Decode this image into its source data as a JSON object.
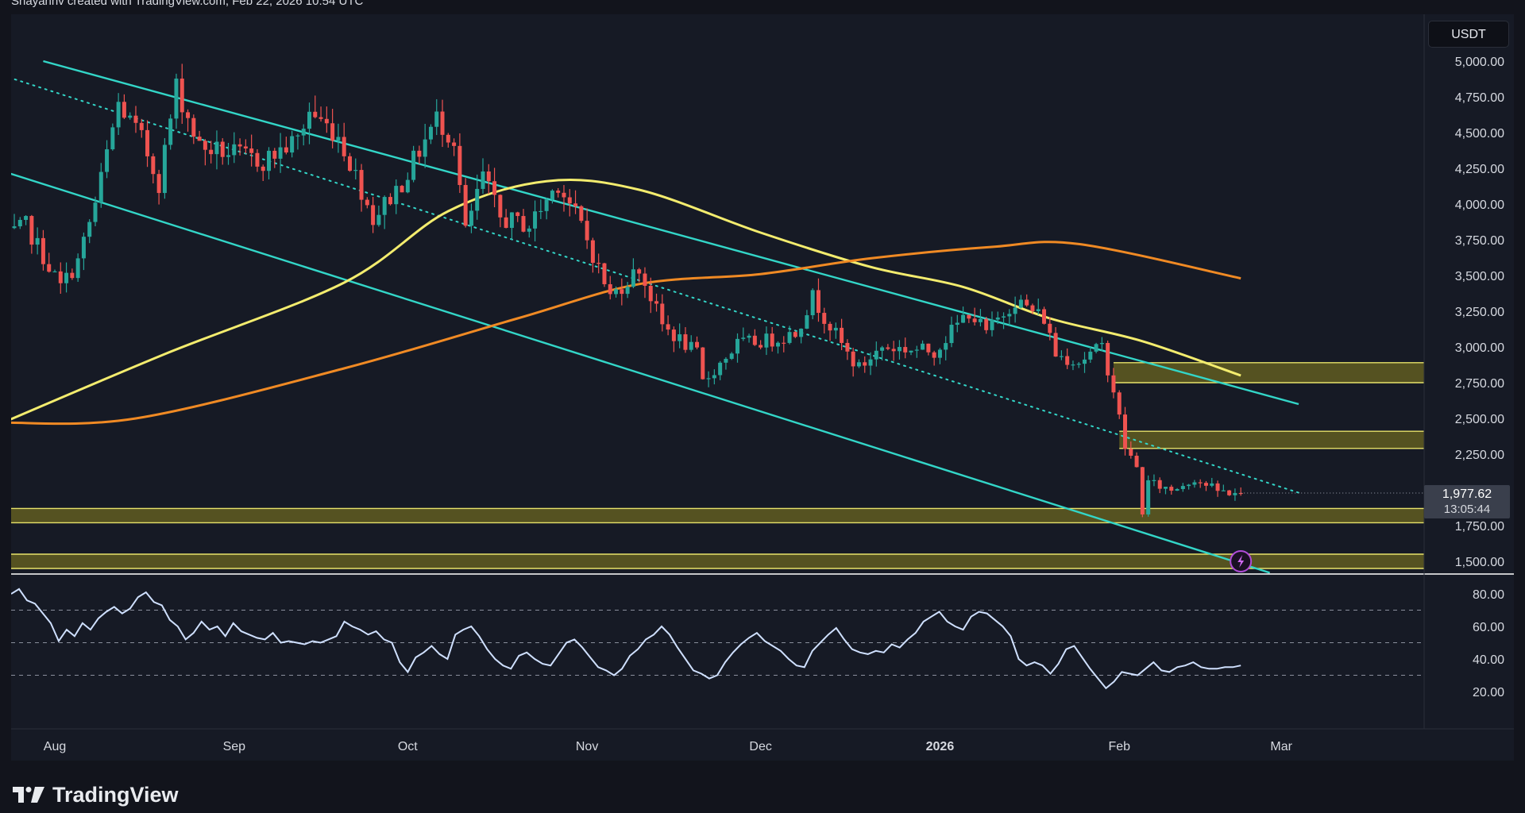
{
  "header": {
    "text": "Shayanhv created with TradingView.com, Feb 22, 2026 10:54 UTC"
  },
  "currency": "USDT",
  "price_badge": {
    "price": "1,977.62",
    "countdown": "13:05:44"
  },
  "footer": {
    "brand": "TradingView"
  },
  "colors": {
    "background": "#12141c",
    "panel": "#161a25",
    "up": "#26a69a",
    "down": "#ef5350",
    "channel": "#33d6c8",
    "ma_fast": "#f3ec6e",
    "ma_slow": "#f08a24",
    "zone_fill": "#6b6520",
    "zone_border": "#e8e36a",
    "rsi_line": "#cfe0ff"
  },
  "chart_data": {
    "type": "candlestick",
    "symbol_quote": "USDT",
    "price_axis": {
      "ticks": [
        5000,
        4750,
        4500,
        4250,
        4000,
        3750,
        3500,
        3250,
        3000,
        2750,
        2500,
        2250,
        1750,
        1500
      ],
      "tick_labels": [
        "5,000.00",
        "4,750.00",
        "4,500.00",
        "4,250.00",
        "4,000.00",
        "3,750.00",
        "3,500.00",
        "3,250.00",
        "3,000.00",
        "2,750.00",
        "2,500.00",
        "2,250.00",
        "1,750.00",
        "1,500.00"
      ],
      "range": [
        1420,
        5120
      ]
    },
    "time_axis": {
      "labels": [
        "Aug",
        "Sep",
        "Oct",
        "Nov",
        "Dec",
        "2026",
        "Feb",
        "Mar"
      ],
      "dates": [
        "2025-08-01",
        "2025-09-01",
        "2025-10-01",
        "2025-11-01",
        "2025-12-01",
        "2026-01-01",
        "2026-02-01",
        "2026-03-01"
      ]
    },
    "close_path": [
      [
        "2025-07-23",
        3740
      ],
      [
        "2025-07-27",
        3850
      ],
      [
        "2025-08-02",
        3420
      ],
      [
        "2025-08-05",
        3600
      ],
      [
        "2025-08-08",
        4000
      ],
      [
        "2025-08-12",
        4700
      ],
      [
        "2025-08-16",
        4450
      ],
      [
        "2025-08-19",
        4150
      ],
      [
        "2025-08-22",
        4820
      ],
      [
        "2025-08-26",
        4400
      ],
      [
        "2025-09-01",
        4350
      ],
      [
        "2025-09-06",
        4300
      ],
      [
        "2025-09-12",
        4450
      ],
      [
        "2025-09-14",
        4650
      ],
      [
        "2025-09-19",
        4480
      ],
      [
        "2025-09-22",
        4200
      ],
      [
        "2025-09-25",
        3900
      ],
      [
        "2025-09-30",
        4150
      ],
      [
        "2025-10-06",
        4600
      ],
      [
        "2025-10-09",
        4450
      ],
      [
        "2025-10-11",
        3800
      ],
      [
        "2025-10-14",
        4200
      ],
      [
        "2025-10-17",
        3900
      ],
      [
        "2025-10-22",
        3850
      ],
      [
        "2025-10-27",
        4150
      ],
      [
        "2025-10-31",
        3850
      ],
      [
        "2025-11-03",
        3550
      ],
      [
        "2025-11-05",
        3350
      ],
      [
        "2025-11-10",
        3550
      ],
      [
        "2025-11-14",
        3150
      ],
      [
        "2025-11-20",
        2950
      ],
      [
        "2025-11-21",
        2750
      ],
      [
        "2025-11-27",
        3020
      ],
      [
        "2025-12-03",
        3050
      ],
      [
        "2025-12-07",
        3100
      ],
      [
        "2025-12-10",
        3350
      ],
      [
        "2025-12-16",
        2950
      ],
      [
        "2025-12-18",
        2850
      ],
      [
        "2025-12-22",
        3000
      ],
      [
        "2025-12-31",
        2970
      ],
      [
        "2026-01-06",
        3250
      ],
      [
        "2026-01-09",
        3100
      ],
      [
        "2026-01-14",
        3330
      ],
      [
        "2026-01-19",
        3200
      ],
      [
        "2026-01-21",
        2950
      ],
      [
        "2026-01-25",
        2900
      ],
      [
        "2026-01-29",
        3000
      ],
      [
        "2026-01-31",
        2700
      ],
      [
        "2026-02-02",
        2300
      ],
      [
        "2026-02-04",
        2150
      ],
      [
        "2026-02-05",
        1850
      ],
      [
        "2026-02-06",
        2050
      ],
      [
        "2026-02-10",
        2000
      ],
      [
        "2026-02-14",
        2080
      ],
      [
        "2026-02-18",
        1990
      ],
      [
        "2026-02-22",
        1977.62
      ]
    ],
    "moving_averages": [
      {
        "color": "yellow",
        "points": [
          [
            "2025-07-23",
            2470
          ],
          [
            "2025-08-20",
            2950
          ],
          [
            "2025-09-20",
            3450
          ],
          [
            "2025-10-08",
            3950
          ],
          [
            "2025-10-25",
            4160
          ],
          [
            "2025-11-10",
            4100
          ],
          [
            "2025-12-01",
            3800
          ],
          [
            "2025-12-20",
            3560
          ],
          [
            "2026-01-05",
            3420
          ],
          [
            "2026-01-20",
            3200
          ],
          [
            "2026-02-05",
            3040
          ],
          [
            "2026-02-22",
            2800
          ]
        ]
      },
      {
        "color": "orange",
        "points": [
          [
            "2025-07-23",
            2470
          ],
          [
            "2025-08-15",
            2500
          ],
          [
            "2025-09-20",
            2850
          ],
          [
            "2025-10-20",
            3200
          ],
          [
            "2025-11-10",
            3440
          ],
          [
            "2025-12-01",
            3510
          ],
          [
            "2025-12-20",
            3620
          ],
          [
            "2026-01-10",
            3700
          ],
          [
            "2026-01-25",
            3720
          ],
          [
            "2026-02-22",
            3480
          ]
        ]
      }
    ],
    "channel": {
      "upper": [
        [
          "2025-07-30",
          5000
        ],
        [
          "2026-03-04",
          2600
        ]
      ],
      "lower": [
        [
          "2025-07-23",
          4230
        ],
        [
          "2026-02-27",
          1420
        ]
      ],
      "midline": [
        [
          "2025-07-23",
          4900
        ],
        [
          "2026-03-04",
          1980
        ]
      ]
    },
    "zones": [
      {
        "from": 2750,
        "to": 2890,
        "start": "2026-01-31"
      },
      {
        "from": 2290,
        "to": 2410,
        "start": "2026-02-01"
      },
      {
        "from": 1770,
        "to": 1870,
        "start": "2025-07-23"
      },
      {
        "from": 1450,
        "to": 1550,
        "start": "2025-07-23"
      }
    ],
    "rsi": {
      "ticks": [
        80,
        60,
        40,
        20
      ],
      "tick_labels": [
        "80.00",
        "60.00",
        "40.00",
        "20.00"
      ],
      "levels": [
        70,
        50,
        30
      ],
      "values": [
        80,
        83,
        76,
        74,
        68,
        62,
        51,
        58,
        54,
        62,
        58,
        65,
        69,
        72,
        68,
        71,
        78,
        81,
        75,
        73,
        64,
        60,
        52,
        56,
        63,
        58,
        60,
        54,
        62,
        57,
        55,
        53,
        52,
        56,
        50,
        51,
        50,
        49,
        51,
        50,
        52,
        54,
        63,
        60,
        58,
        55,
        57,
        52,
        50,
        38,
        32,
        41,
        44,
        48,
        43,
        40,
        55,
        58,
        60,
        54,
        46,
        40,
        36,
        34,
        42,
        44,
        40,
        37,
        36,
        43,
        50,
        52,
        47,
        41,
        35,
        33,
        30,
        34,
        42,
        46,
        52,
        55,
        60,
        55,
        47,
        40,
        33,
        31,
        28,
        30,
        38,
        44,
        49,
        53,
        56,
        51,
        48,
        45,
        40,
        36,
        35,
        45,
        50,
        55,
        59,
        52,
        46,
        44,
        43,
        45,
        44,
        49,
        47,
        52,
        56,
        63,
        66,
        69,
        63,
        60,
        58,
        66,
        69,
        68,
        64,
        60,
        54,
        40,
        36,
        38,
        36,
        31,
        37,
        46,
        48,
        41,
        34,
        28,
        22,
        26,
        32,
        31,
        30,
        34,
        38,
        33,
        32,
        35,
        36,
        38,
        35,
        34,
        34,
        35,
        35,
        36
      ]
    }
  }
}
